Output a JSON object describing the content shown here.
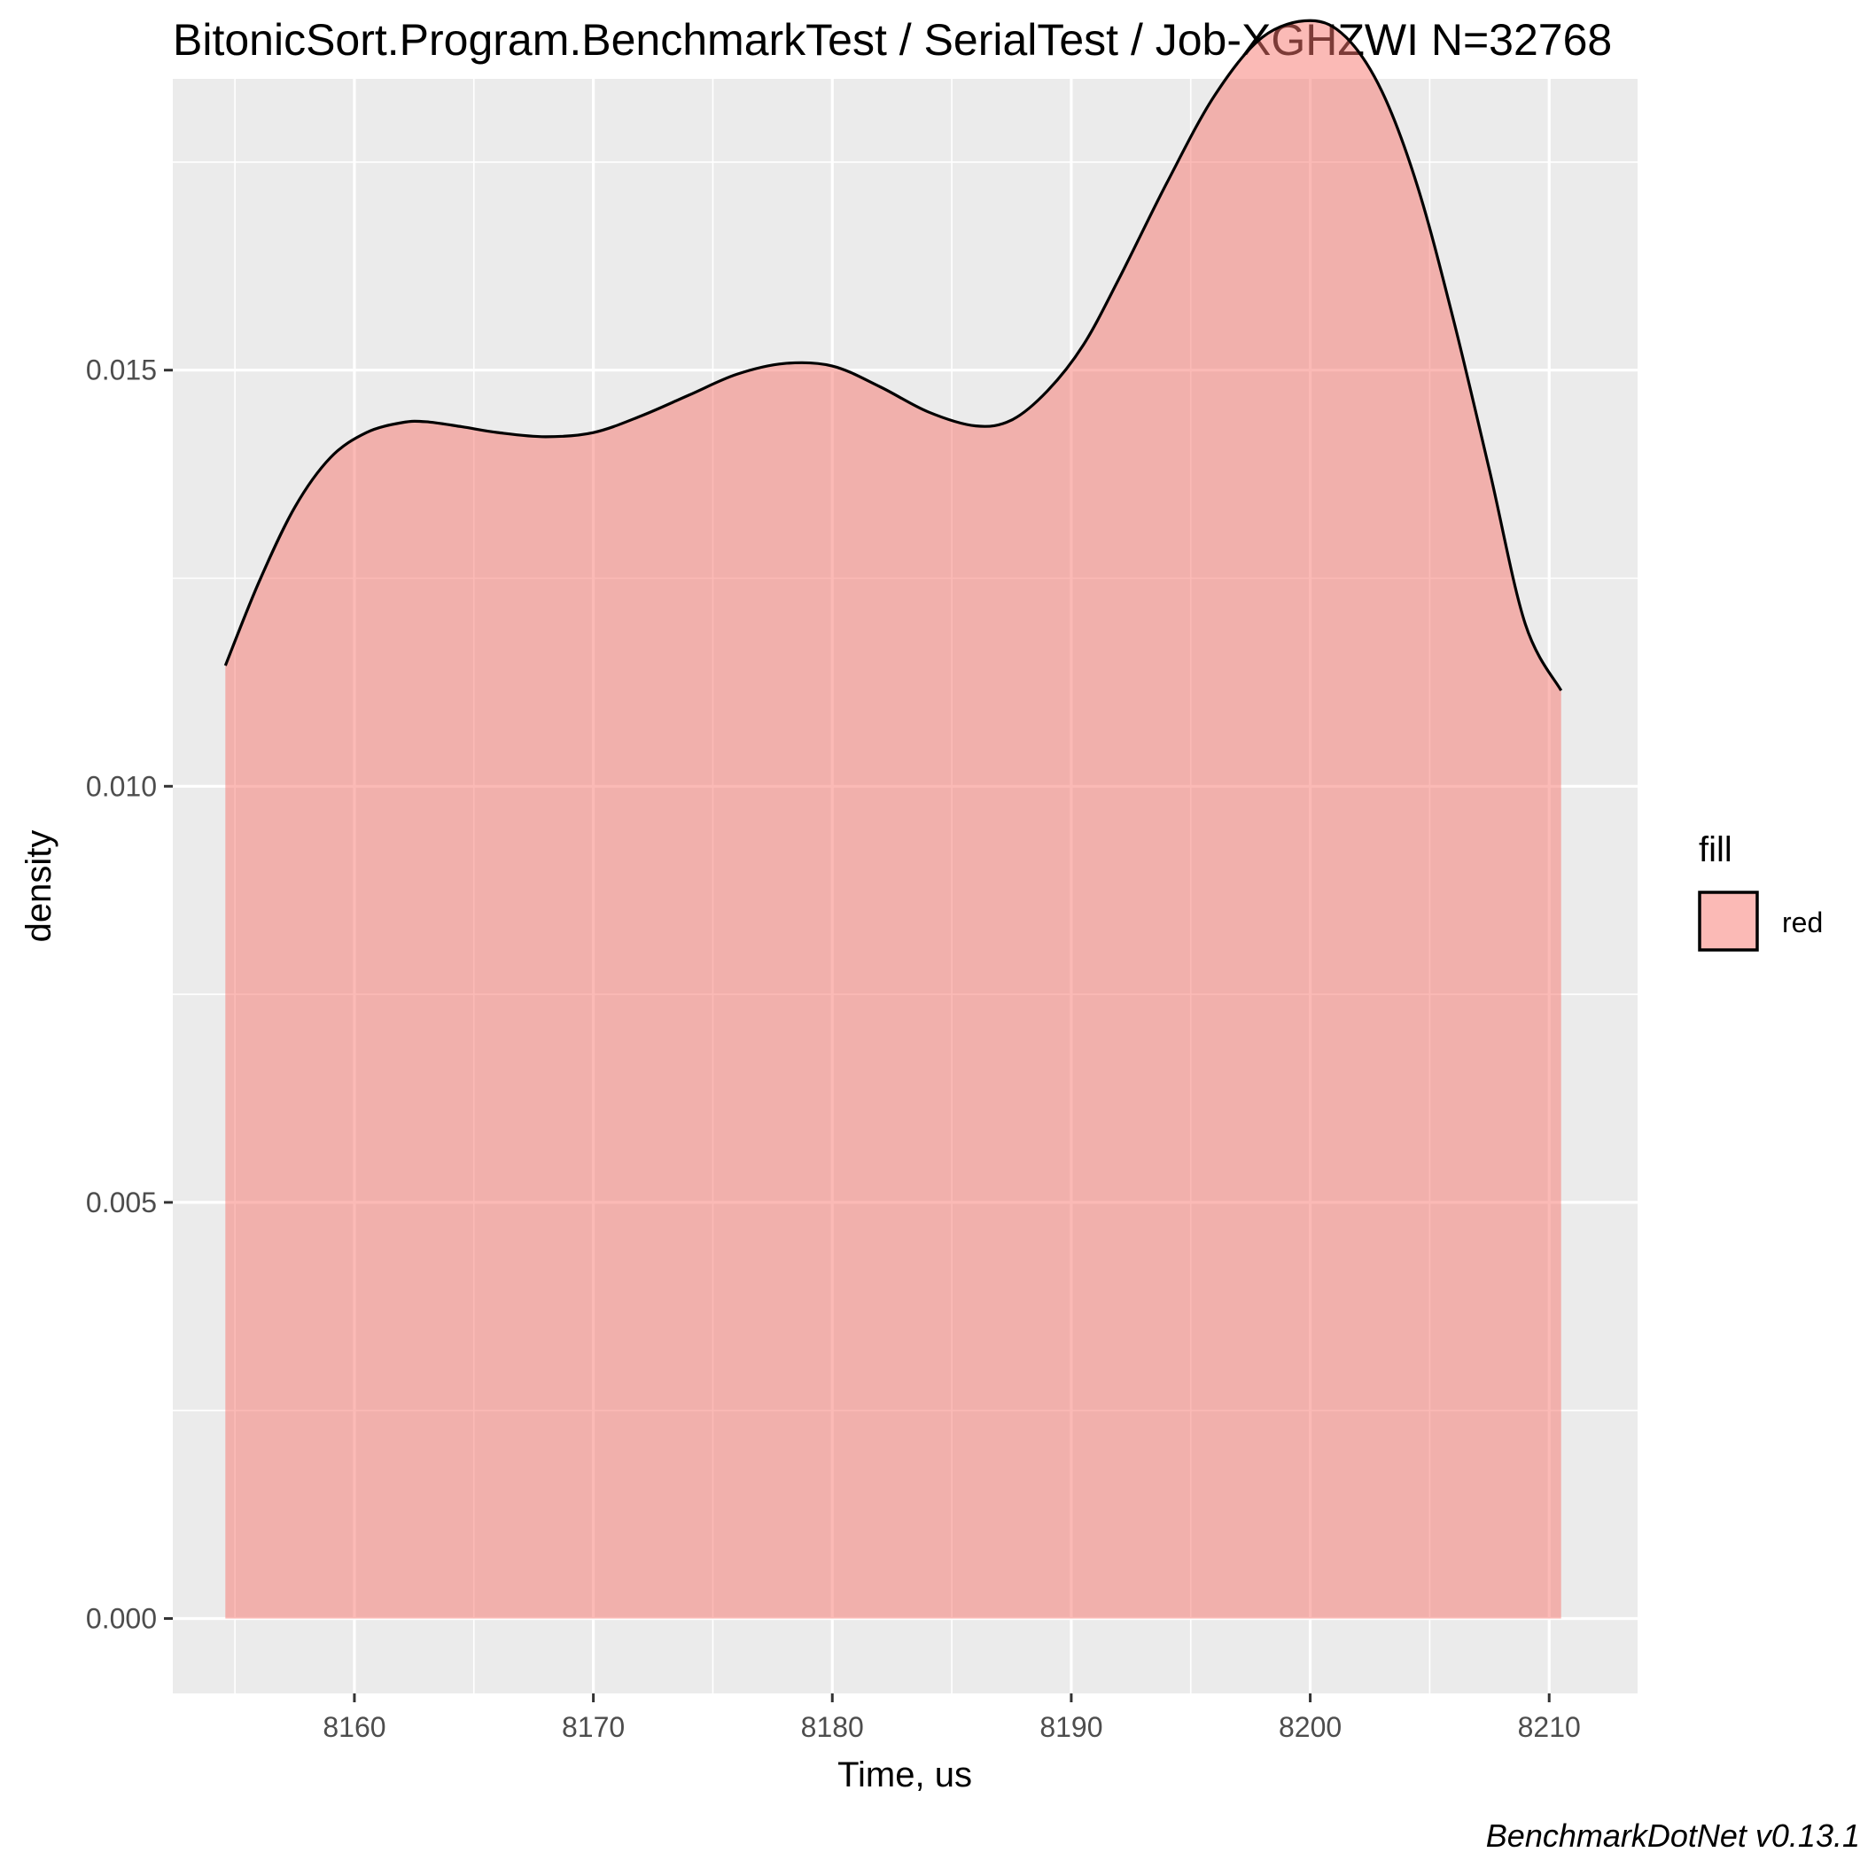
{
  "chart_data": {
    "type": "area",
    "title": "BitonicSort.Program.BenchmarkTest / SerialTest / Job-XGHZWI N=32768",
    "xlabel": "Time, us",
    "ylabel": "density",
    "xlim": [
      8152.4,
      8213.7
    ],
    "ylim": [
      -0.0009,
      0.0185
    ],
    "x_ticks": [
      8160,
      8170,
      8180,
      8190,
      8200,
      8210
    ],
    "x_tick_labels": [
      "8160",
      "8170",
      "8180",
      "8190",
      "8200",
      "8210"
    ],
    "y_ticks": [
      0.0,
      0.005,
      0.01,
      0.015
    ],
    "y_tick_labels": [
      "0.000",
      "0.005",
      "0.010",
      "0.015"
    ],
    "grid": true,
    "legend": {
      "title": "fill",
      "position": "right",
      "entries": [
        {
          "label": "red",
          "color": "#F8766D"
        }
      ]
    },
    "series": [
      {
        "fill_color": "#F8766D",
        "fill_opacity": 0.5,
        "line_color": "#000000",
        "x": [
          8154.6,
          8156.0,
          8157.5,
          8159.0,
          8160.5,
          8162.0,
          8163.0,
          8164.5,
          8166.0,
          8168.0,
          8170.0,
          8172.0,
          8174.0,
          8176.0,
          8178.0,
          8180.0,
          8182.0,
          8184.0,
          8186.0,
          8187.5,
          8189.0,
          8190.5,
          8192.0,
          8194.0,
          8196.0,
          8198.0,
          8200.0,
          8201.5,
          8203.0,
          8204.5,
          8206.0,
          8207.5,
          8209.0,
          8210.5
        ],
        "y": [
          0.01145,
          0.01245,
          0.01335,
          0.01395,
          0.01425,
          0.01437,
          0.01438,
          0.01432,
          0.01425,
          0.0142,
          0.01425,
          0.01445,
          0.0147,
          0.01495,
          0.01508,
          0.01505,
          0.0148,
          0.0145,
          0.01433,
          0.0144,
          0.01475,
          0.0153,
          0.0161,
          0.01725,
          0.0183,
          0.019,
          0.0192,
          0.019,
          0.01835,
          0.0172,
          0.0156,
          0.0138,
          0.01195,
          0.01115
        ]
      }
    ]
  },
  "caption": "BenchmarkDotNet v0.13.1"
}
